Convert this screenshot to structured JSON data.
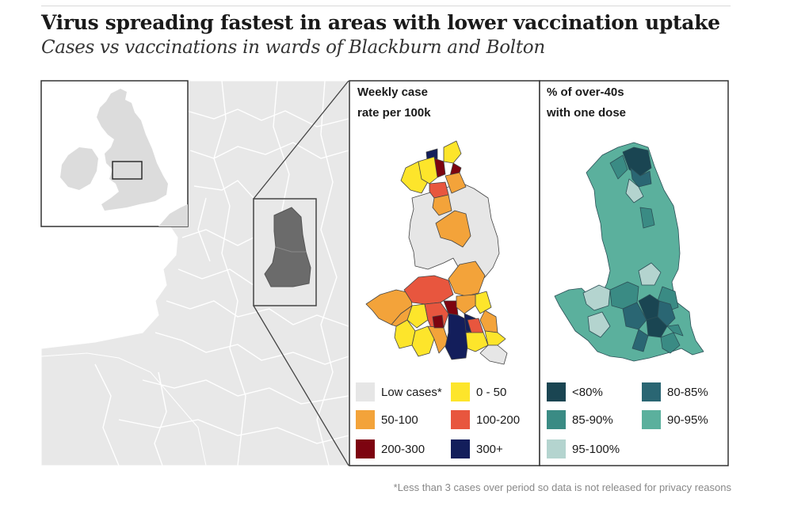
{
  "header": {
    "title": "Virus spreading fastest in areas with lower vaccination uptake",
    "subtitle": "Cases vs vaccinations in wards of Blackburn and Bolton"
  },
  "panels": {
    "cases": {
      "title_line1": "Weekly case",
      "title_line2": "rate per 100k",
      "legend": [
        {
          "label": "Low cases*",
          "color": "#e6e6e6"
        },
        {
          "label": "0 - 50",
          "color": "#fde52b"
        },
        {
          "label": "50-100",
          "color": "#f3a33a"
        },
        {
          "label": "100-200",
          "color": "#e8563e"
        },
        {
          "label": "200-300",
          "color": "#7d0410"
        },
        {
          "label": "300+",
          "color": "#131e5b"
        }
      ]
    },
    "vaccination": {
      "title_line1": "% of over-40s",
      "title_line2": "with one dose",
      "legend": [
        {
          "label": "<80%",
          "color": "#1a4552"
        },
        {
          "label": "80-85%",
          "color": "#2a6673"
        },
        {
          "label": "85-90%",
          "color": "#3a8b84"
        },
        {
          "label": "90-95%",
          "color": "#5bb09d"
        },
        {
          "label": "95-100%",
          "color": "#b4d4cf"
        }
      ]
    }
  },
  "colors": {
    "land": "#e8e8e8",
    "sea": "#ffffff",
    "highlight_region": "#6b6b6b",
    "borders": "#ffffff"
  },
  "footnote": "*Less than 3 cases over period so data is not released for privacy reasons"
}
